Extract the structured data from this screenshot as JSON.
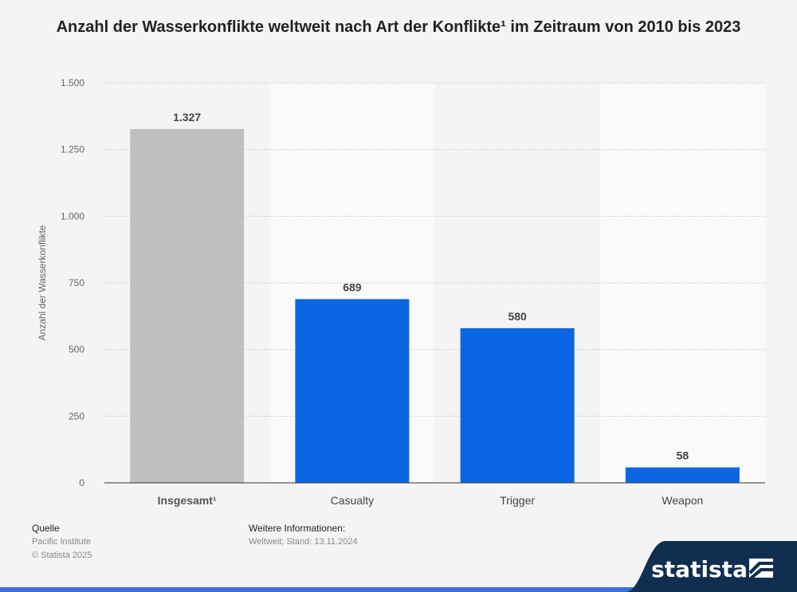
{
  "chart_data": {
    "type": "bar",
    "title": "Anzahl der Wasserkonflikte weltweit nach Art der Konflikte¹ im Zeitraum von 2010 bis 2023",
    "ylabel": "Anzahl der Wasserkonflikte",
    "xlabel": "",
    "ylim": [
      0,
      1500
    ],
    "yticks": [
      0,
      250,
      500,
      750,
      1000,
      1250,
      1500
    ],
    "ytick_labels": [
      "0",
      "250",
      "500",
      "750",
      "1.000",
      "1.250",
      "1.500"
    ],
    "categories": [
      "Insgesamt¹",
      "Casualty",
      "Trigger",
      "Weapon"
    ],
    "values": [
      1327,
      689,
      580,
      58
    ],
    "value_labels": [
      "1.327",
      "689",
      "580",
      "58"
    ],
    "bar_colors": [
      "#bfbfbf",
      "#0b66e4",
      "#0b66e4",
      "#0b66e4"
    ],
    "grid": true
  },
  "footer": {
    "source_heading": "Quelle",
    "source_name": "Pacific Institute",
    "copyright": "© Statista 2025",
    "info_heading": "Weitere Informationen:",
    "info_text": "Weltweit; Stand: 13.11.2024"
  },
  "brand": {
    "name": "statista",
    "color": "#0f2e50",
    "accent": "#3a6fd8"
  }
}
